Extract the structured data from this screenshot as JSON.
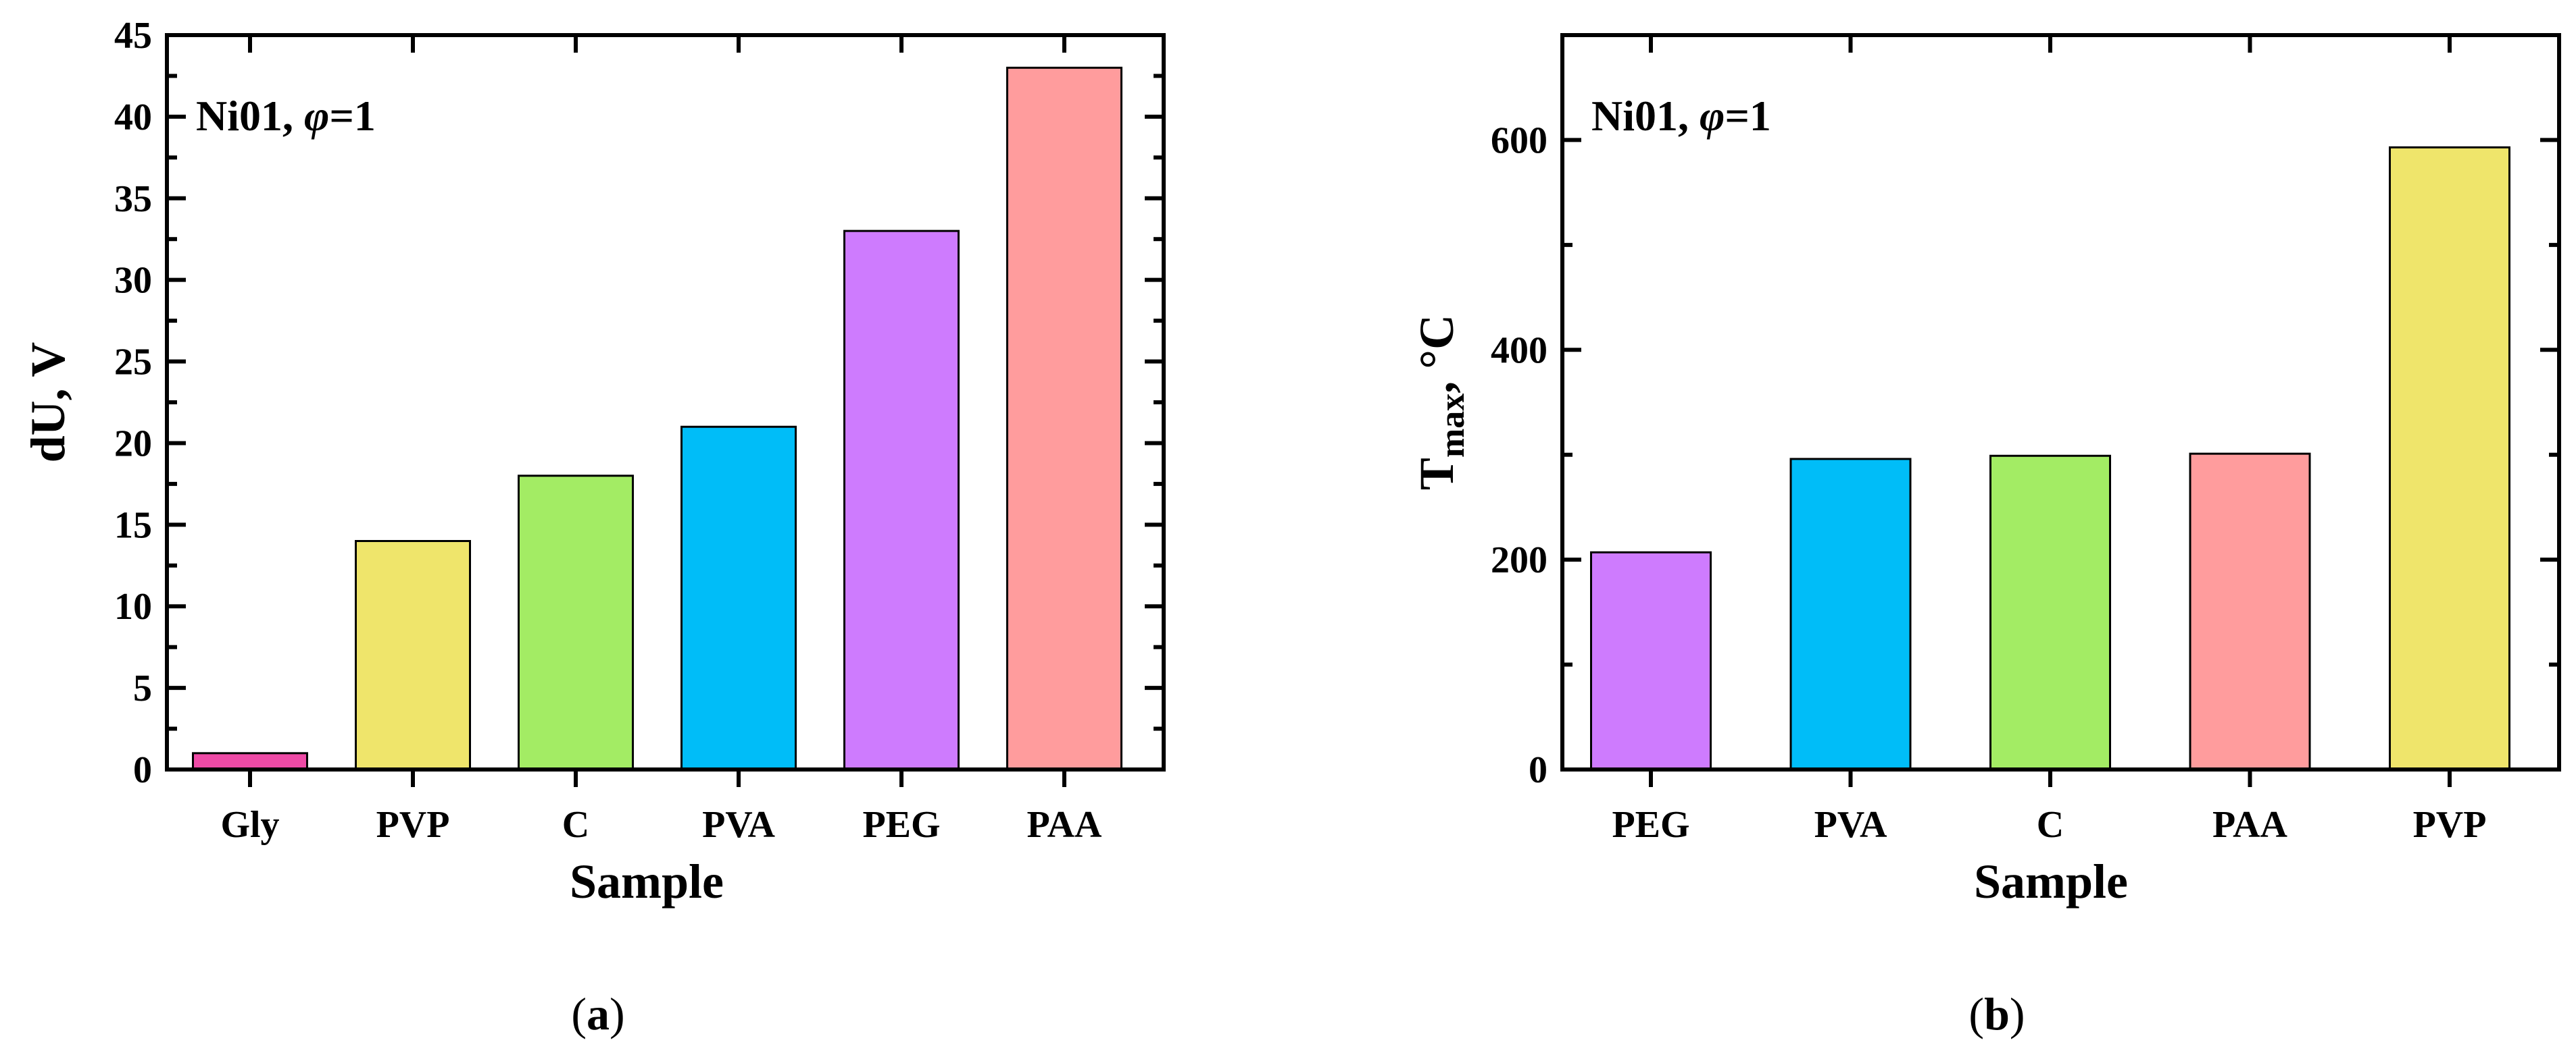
{
  "chart_data": [
    {
      "type": "bar",
      "panel_label_open": "(",
      "panel_label_letter": "a",
      "panel_label_close": ")",
      "annotation_prefix": "Ni01, ",
      "annotation_symbol": "φ",
      "annotation_suffix": "=1",
      "xlabel": "Sample",
      "ylabel": "dU, V",
      "ylim": [
        0,
        45
      ],
      "yticks": [
        0,
        5,
        10,
        15,
        20,
        25,
        30,
        35,
        40,
        45
      ],
      "categories": [
        "Gly",
        "PVP",
        "C",
        "PVA",
        "PEG",
        "PAA"
      ],
      "values": [
        1,
        14,
        18,
        21,
        33,
        43
      ],
      "colors": [
        "#ee4aa6",
        "#efe56b",
        "#a3ec64",
        "#00bdf8",
        "#ce7bfe",
        "#ff9c9d"
      ]
    },
    {
      "type": "bar",
      "panel_label_open": "(",
      "panel_label_letter": "b",
      "panel_label_close": ")",
      "annotation_prefix": "Ni01, ",
      "annotation_symbol": "φ",
      "annotation_suffix": "=1",
      "xlabel": "Sample",
      "ylabel_main": "T",
      "ylabel_sub": "max",
      "ylabel_unit": ", °C",
      "ylim": [
        0,
        700
      ],
      "yticks": [
        0,
        200,
        400,
        600
      ],
      "categories": [
        "PEG",
        "PVA",
        "C",
        "PAA",
        "PVP"
      ],
      "values": [
        207,
        296,
        299,
        301,
        593
      ],
      "colors": [
        "#ce7bfe",
        "#00bdf8",
        "#a3ec64",
        "#ff9c9d",
        "#efe56b"
      ]
    }
  ]
}
